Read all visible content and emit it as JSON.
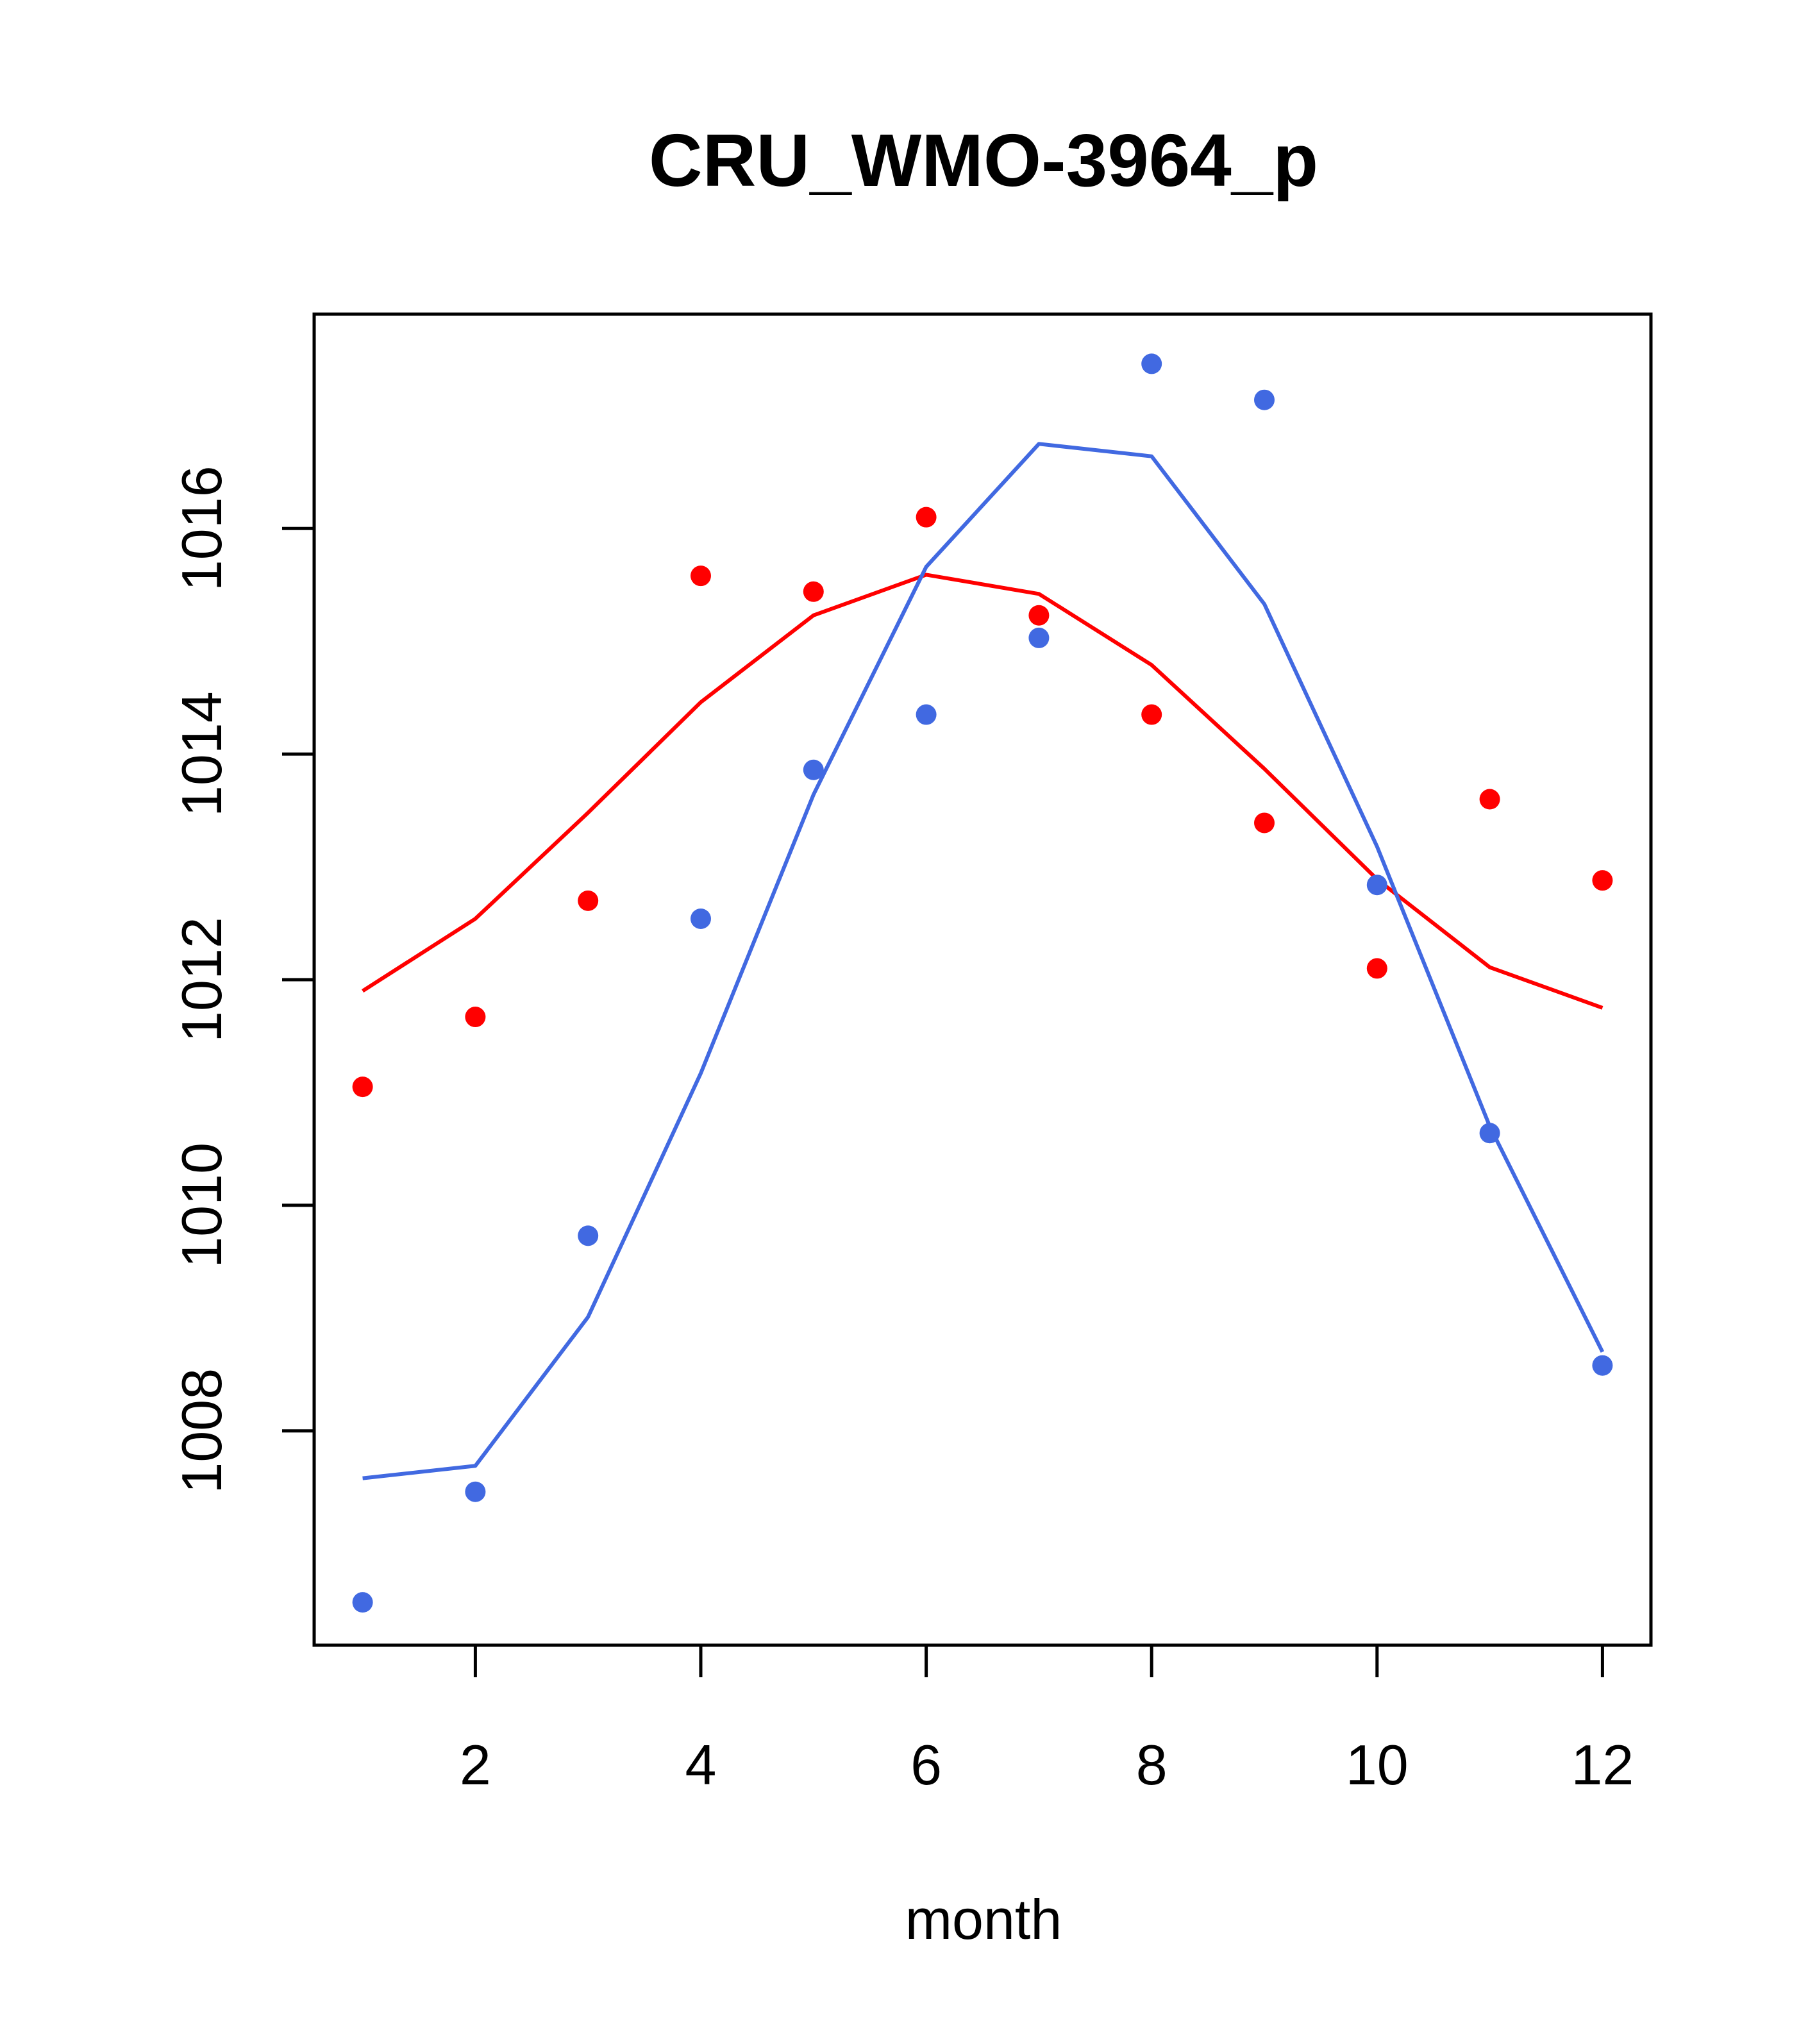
{
  "chart_data": {
    "type": "line",
    "title": "CRU_WMO-3964_p",
    "xlabel": "month",
    "ylabel": "",
    "xlim": [
      0.57,
      12.43
    ],
    "ylim": [
      1006.1,
      1017.9
    ],
    "x_ticks": [
      2,
      4,
      6,
      8,
      10,
      12
    ],
    "y_ticks": [
      1008,
      1010,
      1012,
      1014,
      1016
    ],
    "grid": false,
    "legend": "none",
    "x": [
      1,
      2,
      3,
      4,
      5,
      6,
      7,
      8,
      9,
      10,
      11,
      12
    ],
    "series": [
      {
        "name": "red points",
        "kind": "points",
        "color": "#ff0000",
        "values": [
          1011.05,
          1011.67,
          1012.7,
          1015.58,
          1015.44,
          1016.1,
          1015.23,
          1014.35,
          1013.39,
          1012.1,
          1013.6,
          1012.88
        ]
      },
      {
        "name": "red fit",
        "kind": "line",
        "color": "#ff0000",
        "values": [
          1011.9,
          1012.54,
          1013.48,
          1014.46,
          1015.23,
          1015.59,
          1015.42,
          1014.79,
          1013.87,
          1012.89,
          1012.11,
          1011.75
        ]
      },
      {
        "name": "blue points",
        "kind": "points",
        "color": "#4169e1",
        "values": [
          1006.48,
          1007.46,
          1009.73,
          1012.54,
          1013.86,
          1014.35,
          1015.03,
          1017.46,
          1017.14,
          1012.84,
          1010.64,
          1008.58
        ]
      },
      {
        "name": "blue fit",
        "kind": "line",
        "color": "#4169e1",
        "values": [
          1007.58,
          1007.69,
          1009.01,
          1011.17,
          1013.64,
          1015.66,
          1016.75,
          1016.64,
          1015.33,
          1013.18,
          1010.7,
          1008.7
        ]
      }
    ]
  }
}
